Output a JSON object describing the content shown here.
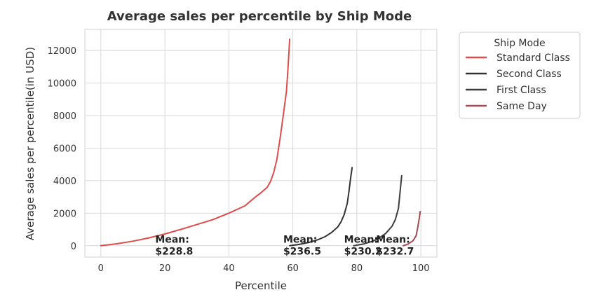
{
  "chart_data": {
    "type": "line",
    "title": "Average sales per percentile by Ship Mode",
    "xlabel": "Percentile",
    "ylabel": "Average sales per percentile(in USD)",
    "xlim": [
      -5,
      105
    ],
    "ylim": [
      -700,
      13300
    ],
    "xticks": [
      0,
      20,
      40,
      60,
      80,
      100
    ],
    "yticks": [
      0,
      2000,
      4000,
      6000,
      8000,
      10000,
      12000
    ],
    "grid": true,
    "legend": {
      "title": "Ship Mode",
      "placement": "outside upper-right",
      "entries": [
        "Standard Class",
        "Second Class",
        "First Class",
        "Same Day"
      ]
    },
    "series": [
      {
        "name": "Standard Class",
        "color": "#e04b4b",
        "x": [
          0,
          5,
          10,
          15,
          20,
          25,
          30,
          35,
          40,
          45,
          48,
          50,
          52,
          53,
          54,
          55,
          56,
          57,
          58,
          58.5,
          59
        ],
        "y": [
          0,
          120,
          280,
          480,
          720,
          1000,
          1300,
          1600,
          2000,
          2450,
          2950,
          3250,
          3600,
          3950,
          4500,
          5300,
          6600,
          8000,
          9500,
          11000,
          12700
        ]
      },
      {
        "name": "Second Class",
        "color": "#333333",
        "x": [
          59,
          62,
          65,
          68,
          70,
          72,
          74,
          75,
          76,
          77,
          77.5,
          78,
          78.5
        ],
        "y": [
          0,
          80,
          200,
          380,
          550,
          800,
          1150,
          1450,
          1900,
          2600,
          3300,
          4100,
          4800
        ]
      },
      {
        "name": "First Class",
        "color": "#3d3d3d",
        "x": [
          79,
          82,
          85,
          87,
          89,
          91,
          92,
          93,
          93.5,
          94
        ],
        "y": [
          0,
          100,
          280,
          480,
          750,
          1200,
          1600,
          2300,
          3300,
          4300
        ]
      },
      {
        "name": "Same Day",
        "color": "#a14b55",
        "x": [
          94.5,
          96,
          97.5,
          98.5,
          99,
          99.5,
          99.8
        ],
        "y": [
          0,
          100,
          300,
          600,
          1100,
          1700,
          2100
        ]
      }
    ],
    "annotations": [
      {
        "text": "Mean:\n$228.8",
        "x": 17,
        "y": 20
      },
      {
        "text": "Mean:\n$236.5",
        "x": 57,
        "y": 20
      },
      {
        "text": "Mean:\n$230.2",
        "x": 76,
        "y": 20
      },
      {
        "text": "Mean:\n$232.7",
        "x": 86,
        "y": 20
      }
    ]
  }
}
